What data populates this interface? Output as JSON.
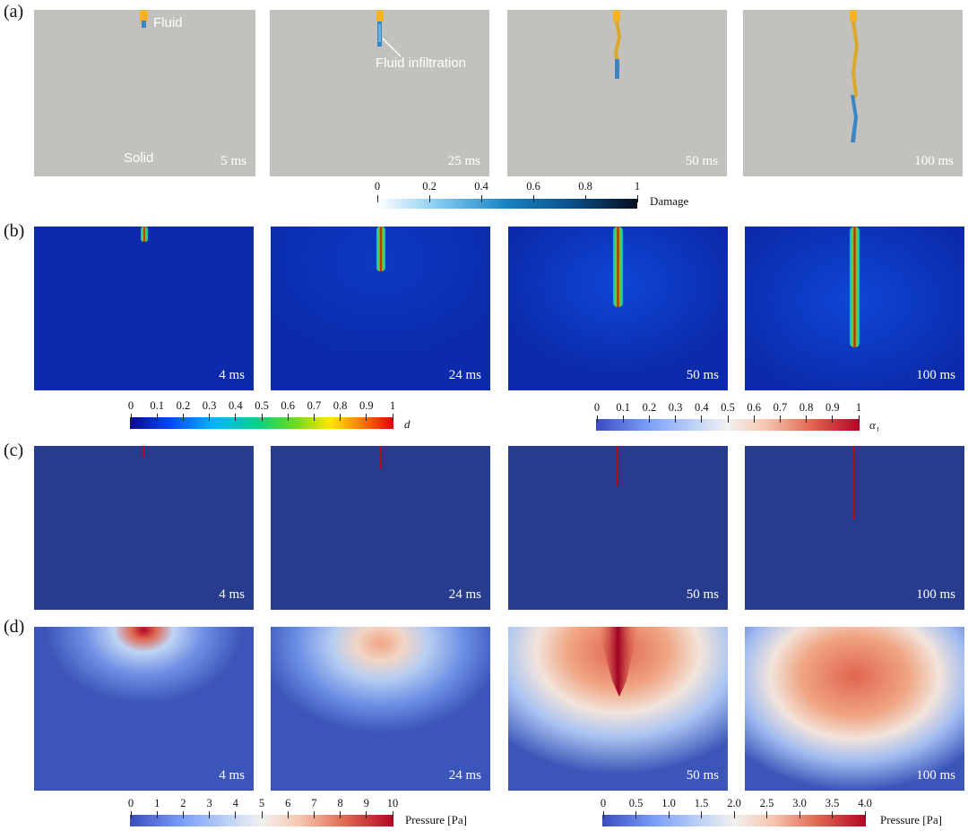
{
  "rows": {
    "a": {
      "label": "(a)",
      "times": [
        "5 ms",
        "25 ms",
        "50 ms",
        "100 ms"
      ]
    },
    "b": {
      "label": "(b)",
      "times": [
        "4 ms",
        "24 ms",
        "50 ms",
        "100 ms"
      ]
    },
    "c": {
      "label": "(c)",
      "times": [
        "4 ms",
        "24 ms",
        "50 ms",
        "100 ms"
      ]
    },
    "d": {
      "label": "(d)",
      "times": [
        "4 ms",
        "24 ms",
        "50 ms",
        "100 ms"
      ]
    }
  },
  "annotations": {
    "fluid": "Fluid",
    "solid": "Solid",
    "infiltration": "Fluid infiltration"
  },
  "colorbars": {
    "damage": {
      "title": "Damage",
      "ticks": [
        "0",
        "0.2",
        "0.4",
        "0.6",
        "0.8",
        "1"
      ],
      "colors": [
        "#ffffff",
        "#7cc8ef",
        "#1682c4",
        "#0a4f8a",
        "#050f1e"
      ]
    },
    "d": {
      "title": "d",
      "ticks": [
        "0",
        "0.1",
        "0.2",
        "0.3",
        "0.4",
        "0.5",
        "0.6",
        "0.7",
        "0.8",
        "0.9",
        "1"
      ],
      "colors": [
        "#0a0a8c",
        "#0047ff",
        "#00b4ff",
        "#00d28c",
        "#64dc1e",
        "#ffe600",
        "#ff7800",
        "#e60000"
      ]
    },
    "alpha": {
      "title": "α₁",
      "ticks": [
        "0",
        "0.1",
        "0.2",
        "0.3",
        "0.4",
        "0.5",
        "0.6",
        "0.7",
        "0.8",
        "0.9",
        "1"
      ],
      "colors": [
        "#3b4cc0",
        "#7b9ff9",
        "#c0d4f5",
        "#f2f0ef",
        "#f5c4ad",
        "#e0654f",
        "#b40426"
      ]
    },
    "pressure_left": {
      "title": "Pressure [Pa]",
      "ticks": [
        "0",
        "1",
        "2",
        "3",
        "4",
        "5",
        "6",
        "7",
        "8",
        "9",
        "10"
      ],
      "colors": [
        "#3b4cc0",
        "#7b9ff9",
        "#c0d4f5",
        "#f2f0ef",
        "#f5c4ad",
        "#e0654f",
        "#b40426"
      ]
    },
    "pressure_right": {
      "title": "Pressure [Pa]",
      "ticks": [
        "0",
        "0.5",
        "1.0",
        "1.5",
        "2.0",
        "2.5",
        "3.0",
        "3.5",
        "4.0"
      ],
      "colors": [
        "#3b4cc0",
        "#7b9ff9",
        "#c0d4f5",
        "#f2f0ef",
        "#f5c4ad",
        "#e0654f",
        "#b40426"
      ]
    }
  },
  "panel_colors": {
    "solid_gray": "#c3c1bd",
    "field_blue": "#0b2bab",
    "row_c_blue": "#273c8c",
    "pressure_blue": "#3b55b8"
  }
}
